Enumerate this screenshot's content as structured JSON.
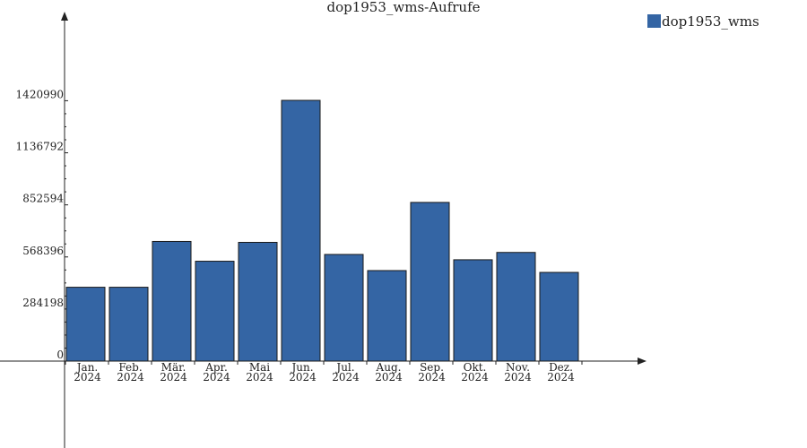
{
  "chart_data": {
    "type": "bar",
    "title": "dop1953_wms-Aufrufe",
    "legend": {
      "position": "top-right",
      "entries": [
        {
          "name": "dop1953_wms",
          "color": "#3465a4"
        }
      ]
    },
    "categories": [
      {
        "month": "Jan.",
        "year": "2024"
      },
      {
        "month": "Feb.",
        "year": "2024"
      },
      {
        "month": "Mär.",
        "year": "2024"
      },
      {
        "month": "Apr.",
        "year": "2024"
      },
      {
        "month": "Mai",
        "year": "2024"
      },
      {
        "month": "Jun.",
        "year": "2024"
      },
      {
        "month": "Jul.",
        "year": "2024"
      },
      {
        "month": "Aug.",
        "year": "2024"
      },
      {
        "month": "Sep.",
        "year": "2024"
      },
      {
        "month": "Okt.",
        "year": "2024"
      },
      {
        "month": "Nov.",
        "year": "2024"
      },
      {
        "month": "Dez.",
        "year": "2024"
      }
    ],
    "series": [
      {
        "name": "dop1953_wms",
        "color": "#3465a4",
        "values": [
          403000,
          403000,
          653000,
          545000,
          648000,
          1423000,
          582000,
          494000,
          866000,
          553000,
          593000,
          484000
        ]
      }
    ],
    "yticks": [
      {
        "value": 0,
        "label": "0"
      },
      {
        "value": 284198,
        "label": "284198"
      },
      {
        "value": 568396,
        "label": "568396"
      },
      {
        "value": 852594,
        "label": "852594"
      },
      {
        "value": 1136792,
        "label": "1136792"
      },
      {
        "value": 1420990,
        "label": "1420990"
      }
    ],
    "ylim": [
      0,
      1900000
    ],
    "grid": false
  }
}
